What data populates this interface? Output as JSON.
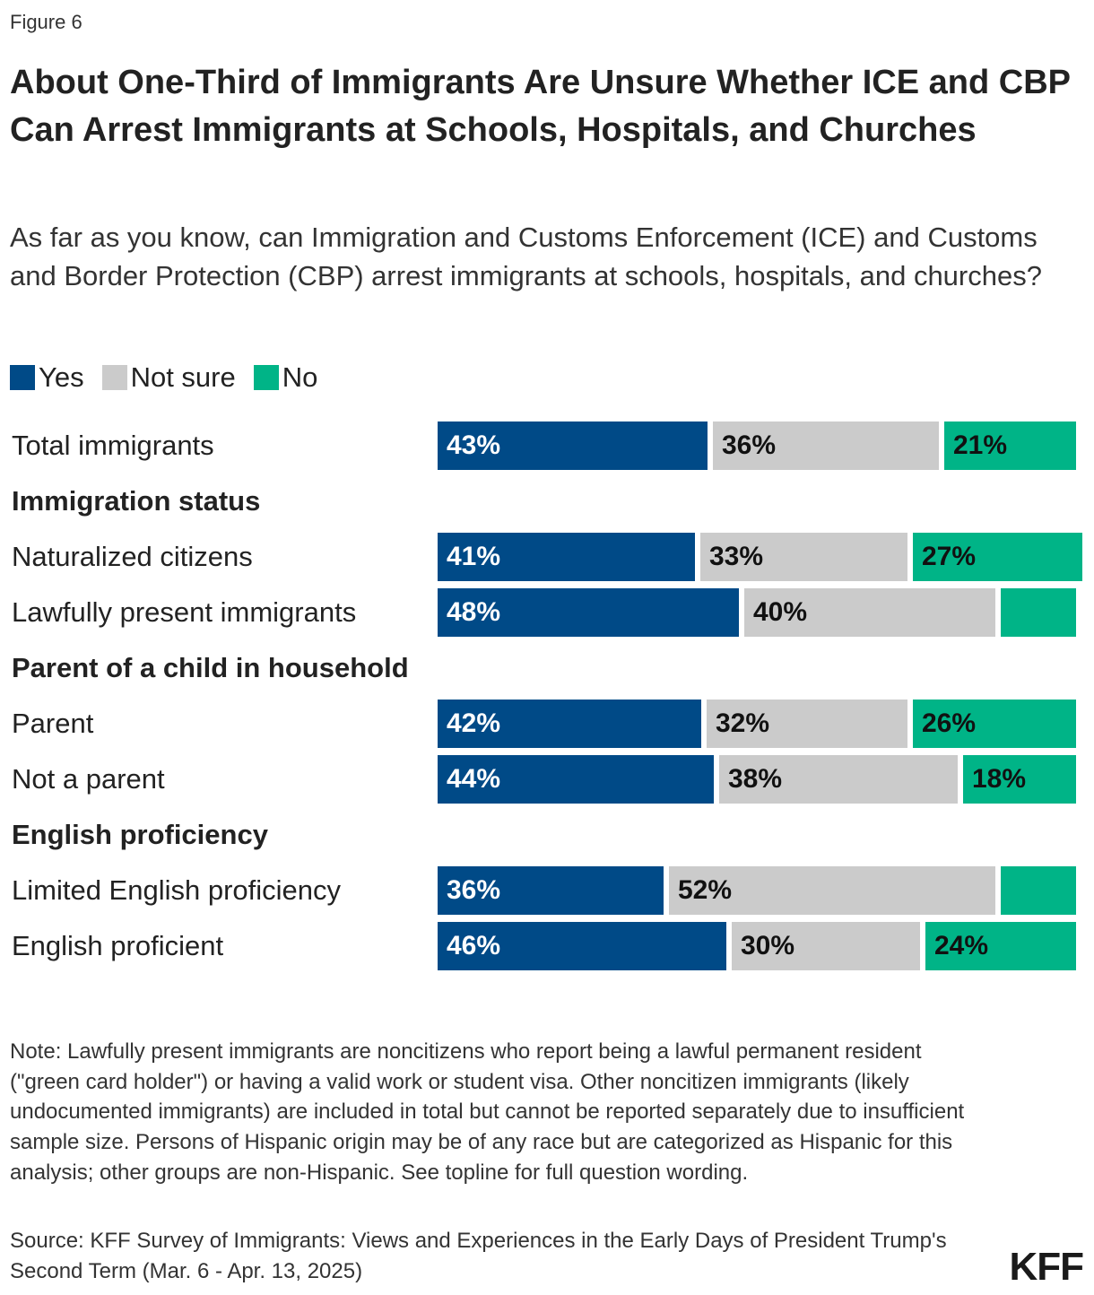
{
  "figure_label": "Figure 6",
  "chart_data": {
    "type": "bar",
    "orientation": "horizontal",
    "stacked": true,
    "title": "About One-Third of Immigrants Are Unsure Whether ICE and CBP Can Arrest Immigrants at Schools, Hospitals, and Churches",
    "subtitle": "As far as you know, can Immigration and Customs Enforcement (ICE) and Customs and Border Protection (CBP) arrest immigrants at schools, hospitals, and churches?",
    "legend_position": "top-left",
    "series": [
      {
        "name": "Yes",
        "color": "#004a87"
      },
      {
        "name": "Not sure",
        "color": "#cbcbcb"
      },
      {
        "name": "No",
        "color": "#00b487"
      }
    ],
    "rows": [
      {
        "kind": "item",
        "label": "Total immigrants",
        "values": [
          43,
          36,
          21
        ],
        "labels_shown": [
          true,
          true,
          true
        ]
      },
      {
        "kind": "group",
        "label": "Immigration status"
      },
      {
        "kind": "item",
        "label": "Naturalized citizens",
        "values": [
          41,
          33,
          27
        ],
        "labels_shown": [
          true,
          true,
          true
        ]
      },
      {
        "kind": "item",
        "label": "Lawfully present immigrants",
        "values": [
          48,
          40,
          12
        ],
        "labels_shown": [
          true,
          true,
          false
        ]
      },
      {
        "kind": "group",
        "label": "Parent of a child in household"
      },
      {
        "kind": "item",
        "label": "Parent",
        "values": [
          42,
          32,
          26
        ],
        "labels_shown": [
          true,
          true,
          true
        ]
      },
      {
        "kind": "item",
        "label": "Not a parent",
        "values": [
          44,
          38,
          18
        ],
        "labels_shown": [
          true,
          true,
          true
        ]
      },
      {
        "kind": "group",
        "label": "English proficiency"
      },
      {
        "kind": "item",
        "label": "Limited English proficiency",
        "values": [
          36,
          52,
          12
        ],
        "labels_shown": [
          true,
          true,
          false
        ]
      },
      {
        "kind": "item",
        "label": "English proficient",
        "values": [
          46,
          30,
          24
        ],
        "labels_shown": [
          true,
          true,
          true
        ]
      }
    ]
  },
  "note": "Note: Lawfully present immigrants are noncitizens who report being a lawful permanent resident (\"green card holder\") or having a valid work or student visa. Other noncitizen immigrants (likely undocumented immigrants) are included in total but cannot be reported separately due to insufficient sample size. Persons of Hispanic origin may be of any race but are categorized as Hispanic for this analysis; other groups are non-Hispanic. See topline for full question wording.",
  "source": "Source: KFF Survey of Immigrants: Views and Experiences in the Early Days of President Trump's Second Term (Mar. 6 - Apr. 13, 2025)",
  "logo": "KFF"
}
